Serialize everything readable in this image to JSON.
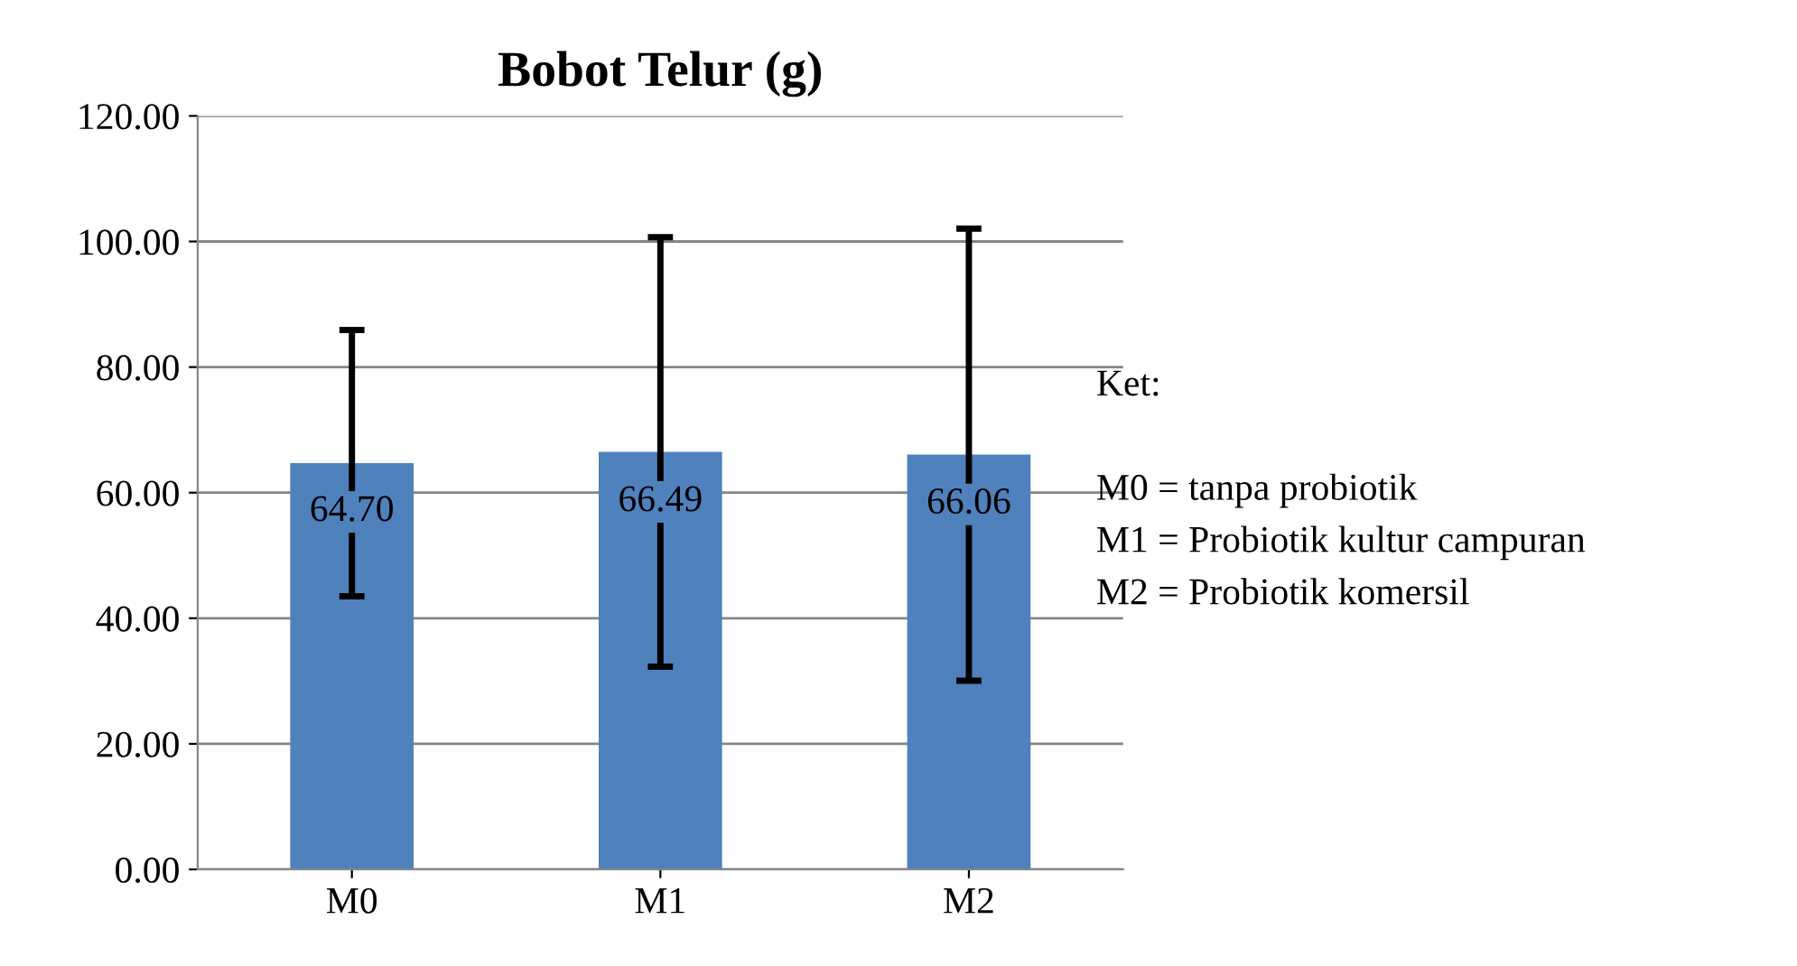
{
  "chart_data": {
    "type": "bar",
    "title": "Bobot Telur (g)",
    "categories": [
      "M0",
      "M1",
      "M2"
    ],
    "values": [
      64.7,
      66.49,
      66.06
    ],
    "errors": [
      21.2,
      34.2,
      36.0
    ],
    "color": "#4f81bd",
    "value_labels": [
      "64.70",
      "66.49",
      "66.06"
    ],
    "ylim": [
      0,
      120
    ],
    "yticks": [
      {
        "value": 0,
        "label": "0.00"
      },
      {
        "value": 20,
        "label": "20.00"
      },
      {
        "value": 40,
        "label": "40.00"
      },
      {
        "value": 60,
        "label": "60.00"
      },
      {
        "value": 80,
        "label": "80.00"
      },
      {
        "value": 100,
        "label": "100.00"
      },
      {
        "value": 120,
        "label": "120.00"
      }
    ],
    "grid": "y",
    "annotations": [
      "Ket:",
      "M0 = tanpa probiotik",
      "M1 = Probiotik kultur campuran",
      "M2 = Probiotik komersil"
    ]
  }
}
